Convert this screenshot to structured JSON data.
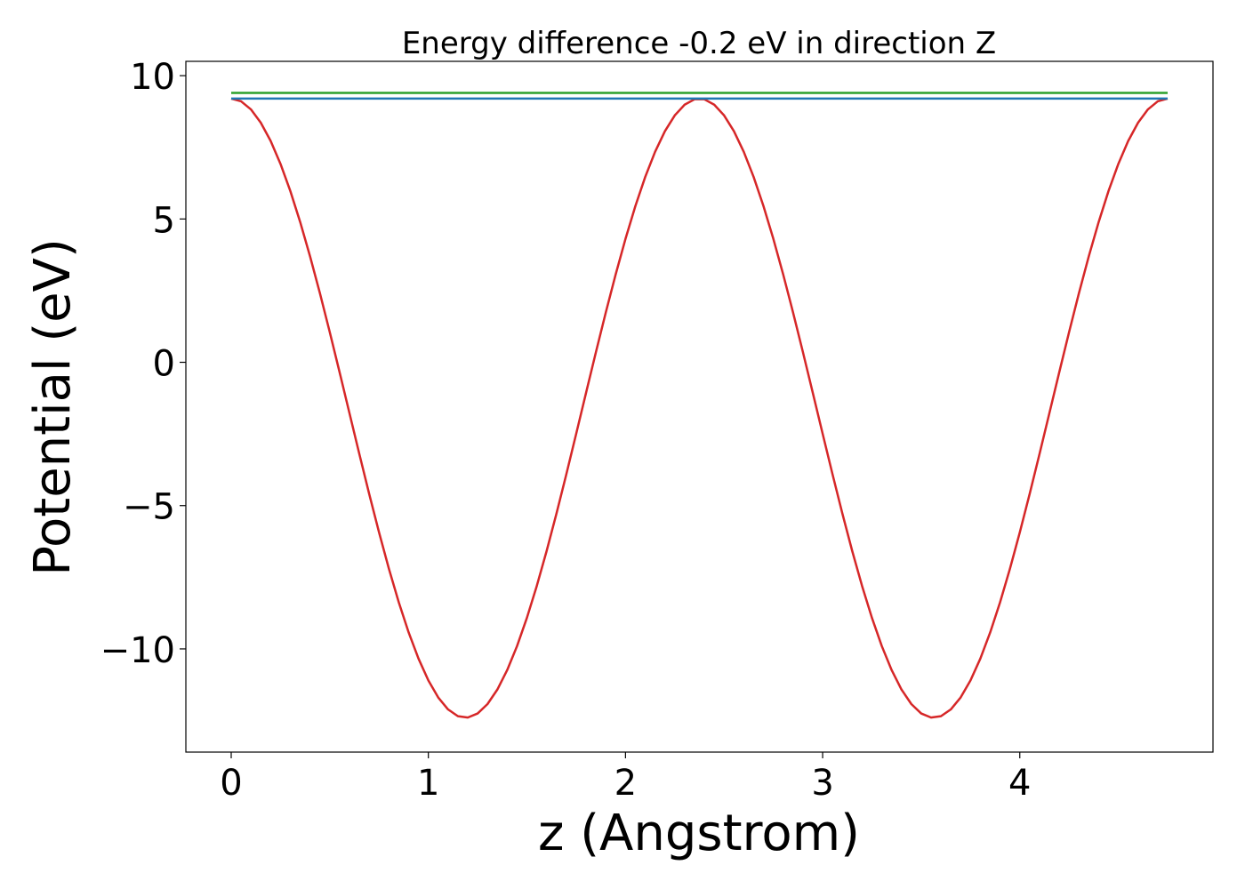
{
  "chart_data": {
    "type": "line",
    "title": "Energy difference -0.2 eV in direction Z",
    "xlabel": "z (Angstrom)",
    "ylabel": "Potential (eV)",
    "xlim": [
      -0.23,
      4.98
    ],
    "ylim": [
      -13.6,
      10.5
    ],
    "xticks": [
      0,
      1,
      2,
      3,
      4
    ],
    "xtick_labels": [
      "0",
      "1",
      "2",
      "3",
      "4"
    ],
    "yticks": [
      -10,
      -5,
      0,
      5,
      10
    ],
    "ytick_labels": [
      "−10",
      "−5",
      "0",
      "5",
      "10"
    ],
    "grid": false,
    "series": [
      {
        "color": "#d62728",
        "x_start": 0,
        "x_end": 4.75,
        "n_points": 96,
        "periods": 2,
        "y_max": 9.2,
        "y_min": -12.4,
        "shape": "cosine-like potential wells with minima at z = 1.2 and z = 3.6"
      },
      {
        "color": "#2ca02c",
        "x": [
          0,
          4.75
        ],
        "y": [
          9.4,
          9.4
        ]
      },
      {
        "color": "#1f77b4",
        "x": [
          0,
          4.75
        ],
        "y": [
          9.2,
          9.2
        ]
      }
    ]
  }
}
